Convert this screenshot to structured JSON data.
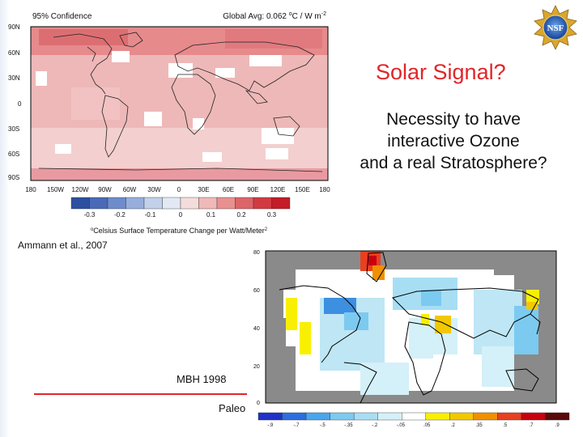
{
  "slide": {
    "title": "Solar Signal?",
    "subtitle_lines": [
      "Necessity to have",
      "interactive Ozone",
      "and a real Stratosphere?"
    ],
    "citation_top": "Ammann et al., 2007",
    "citation_bottom": "MBH 1998",
    "cut_text": "Paleo",
    "accent_color": "#e0262a"
  },
  "map_top": {
    "corner_label": "95% Confidence",
    "global_avg_prefix": "Global Avg: 0.062 ",
    "global_avg_unit_a": "o",
    "global_avg_unit_b": "C / W m",
    "global_avg_unit_c": "-2",
    "lat_labels": [
      "90N",
      "60N",
      "30N",
      "0",
      "30S",
      "60S",
      "90S"
    ],
    "lon_labels": [
      "180",
      "150W",
      "120W",
      "90W",
      "60W",
      "30W",
      "0",
      "30E",
      "60E",
      "90E",
      "120E",
      "150E",
      "180"
    ],
    "colorbar_ticks": [
      "-0.3",
      "-0.2",
      "-0.1",
      "0",
      "0.1",
      "0.2",
      "0.3"
    ],
    "colorbar_colors": [
      "#2c4fa0",
      "#4a6ab8",
      "#6e8ccc",
      "#97aedc",
      "#c2d0ea",
      "#e2e8f4",
      "#f5dcdc",
      "#f0b8b8",
      "#e89090",
      "#dd6468",
      "#d23a42",
      "#c41c28"
    ],
    "colorbar_label_a": "o",
    "colorbar_label_b": "Celsius Surface Temperature Change per Watt/Meter",
    "colorbar_label_c": "2"
  },
  "map_bottom": {
    "lat_labels": [
      "80",
      "60",
      "40",
      "20",
      "0"
    ],
    "colorbar_ticks": [
      "-.9",
      "-.7",
      "-.5",
      "-.35",
      "-.2",
      "-.05",
      ".05",
      ".2",
      ".35",
      ".5",
      ".7",
      ".9"
    ],
    "colorbar_colors": [
      "#1e32c8",
      "#2c6ee0",
      "#4aa6ec",
      "#7ccaf0",
      "#a8def4",
      "#d4f0f8",
      "#ffffff",
      "#f8f000",
      "#f2c800",
      "#f09000",
      "#e84020",
      "#c80010",
      "#5a0a0a"
    ]
  },
  "logo": {
    "text": "NSF"
  }
}
